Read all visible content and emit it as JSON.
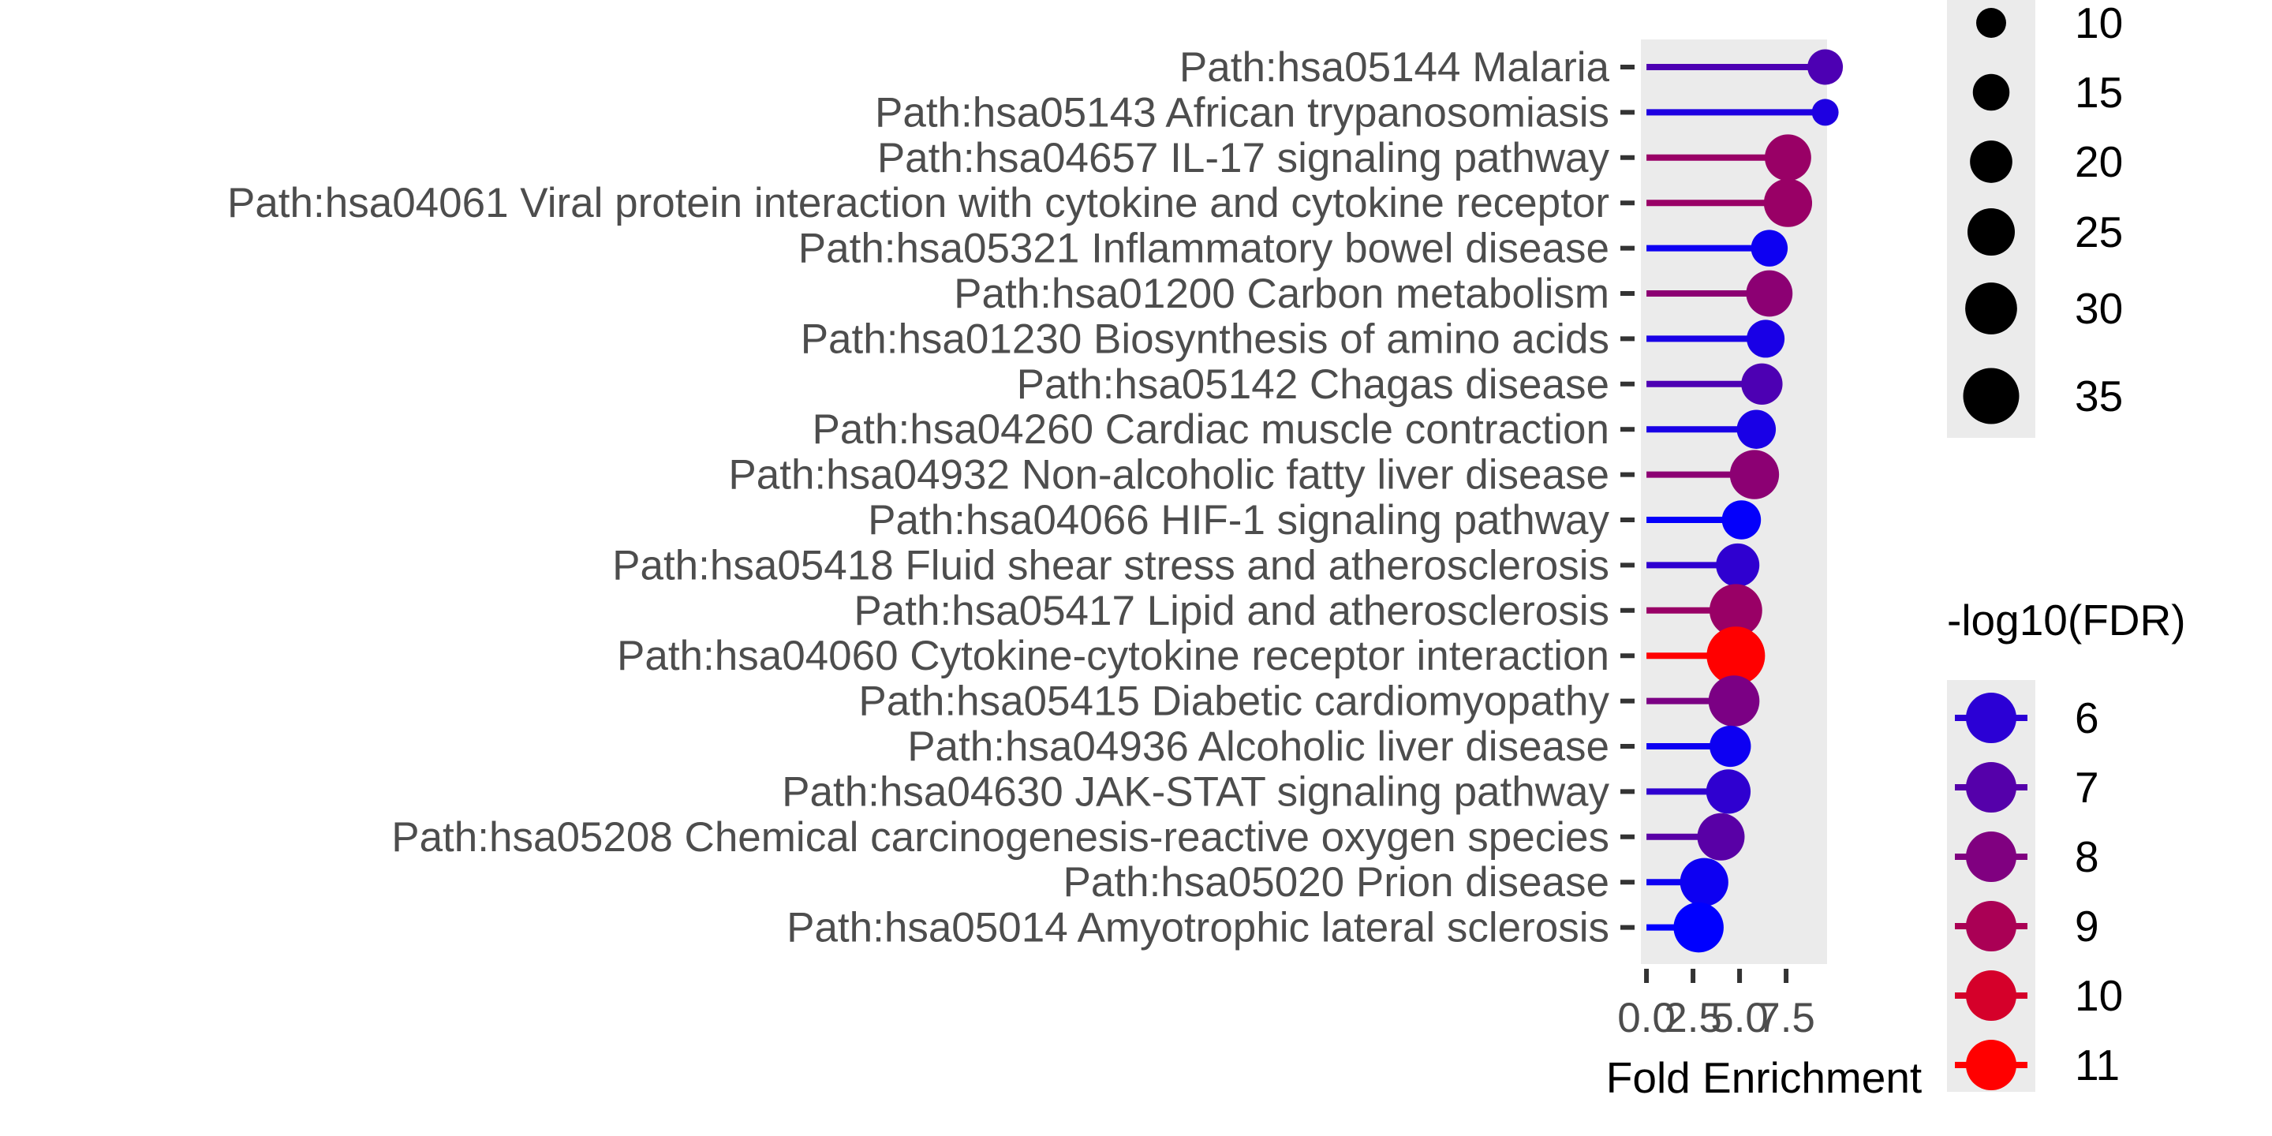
{
  "chart_data": {
    "type": "lollipop",
    "title": "",
    "xlabel": "Fold Enrichment",
    "ylabel": "",
    "xlim": [
      -0.3,
      9.7
    ],
    "x_ticks": [
      {
        "value": 0.0,
        "label": "0.0"
      },
      {
        "value": 2.5,
        "label": "2.5"
      },
      {
        "value": 5.0,
        "label": "5.0"
      },
      {
        "value": 7.5,
        "label": "7.5"
      }
    ],
    "grid": false,
    "panel_background": "#ebebeb",
    "categories": [
      "Path:hsa05144 Malaria",
      "Path:hsa05143 African trypanosomiasis",
      "Path:hsa04657 IL-17 signaling pathway",
      "Path:hsa04061 Viral protein interaction with cytokine and cytokine receptor",
      "Path:hsa05321 Inflammatory bowel disease",
      "Path:hsa01200 Carbon metabolism",
      "Path:hsa01230 Biosynthesis of amino acids",
      "Path:hsa05142 Chagas disease",
      "Path:hsa04260 Cardiac muscle contraction",
      "Path:hsa04932 Non-alcoholic fatty liver disease",
      "Path:hsa04066 HIF-1 signaling pathway",
      "Path:hsa05418 Fluid shear stress and atherosclerosis",
      "Path:hsa05417 Lipid and atherosclerosis",
      "Path:hsa04060 Cytokine-cytokine receptor interaction",
      "Path:hsa05415 Diabetic cardiomyopathy",
      "Path:hsa04936 Alcoholic liver disease",
      "Path:hsa04630 JAK-STAT signaling pathway",
      "Path:hsa05208 Chemical carcinogenesis-reactive oxygen species",
      "Path:hsa05020 Prion disease",
      "Path:hsa05014 Amyotrophic lateral sclerosis"
    ],
    "fold_enrichment": [
      9.6,
      9.6,
      7.6,
      7.6,
      6.6,
      6.6,
      6.4,
      6.2,
      5.9,
      5.8,
      5.1,
      4.9,
      4.8,
      4.8,
      4.7,
      4.5,
      4.4,
      4.0,
      3.1,
      2.8
    ],
    "gene_count": [
      14,
      8,
      24,
      26,
      15,
      24,
      16,
      19,
      17,
      27,
      17,
      21,
      31,
      38,
      29,
      19,
      22,
      25,
      26,
      28
    ],
    "neg_log10_fdr": [
      6.8,
      5.7,
      8.6,
      8.6,
      5.3,
      8.3,
      5.6,
      6.8,
      5.6,
      8.3,
      5.1,
      6.1,
      8.6,
      11.0,
      7.9,
      5.3,
      6.1,
      7.1,
      5.3,
      5.0
    ],
    "size_legend": {
      "title": "",
      "values": [
        10,
        15,
        20,
        25,
        30,
        35
      ]
    },
    "color_legend": {
      "title": "-log10(FDR)",
      "values": [
        6,
        7,
        8,
        9,
        10,
        11
      ],
      "low_color": "#0000ff",
      "high_color": "#ff0000"
    }
  }
}
